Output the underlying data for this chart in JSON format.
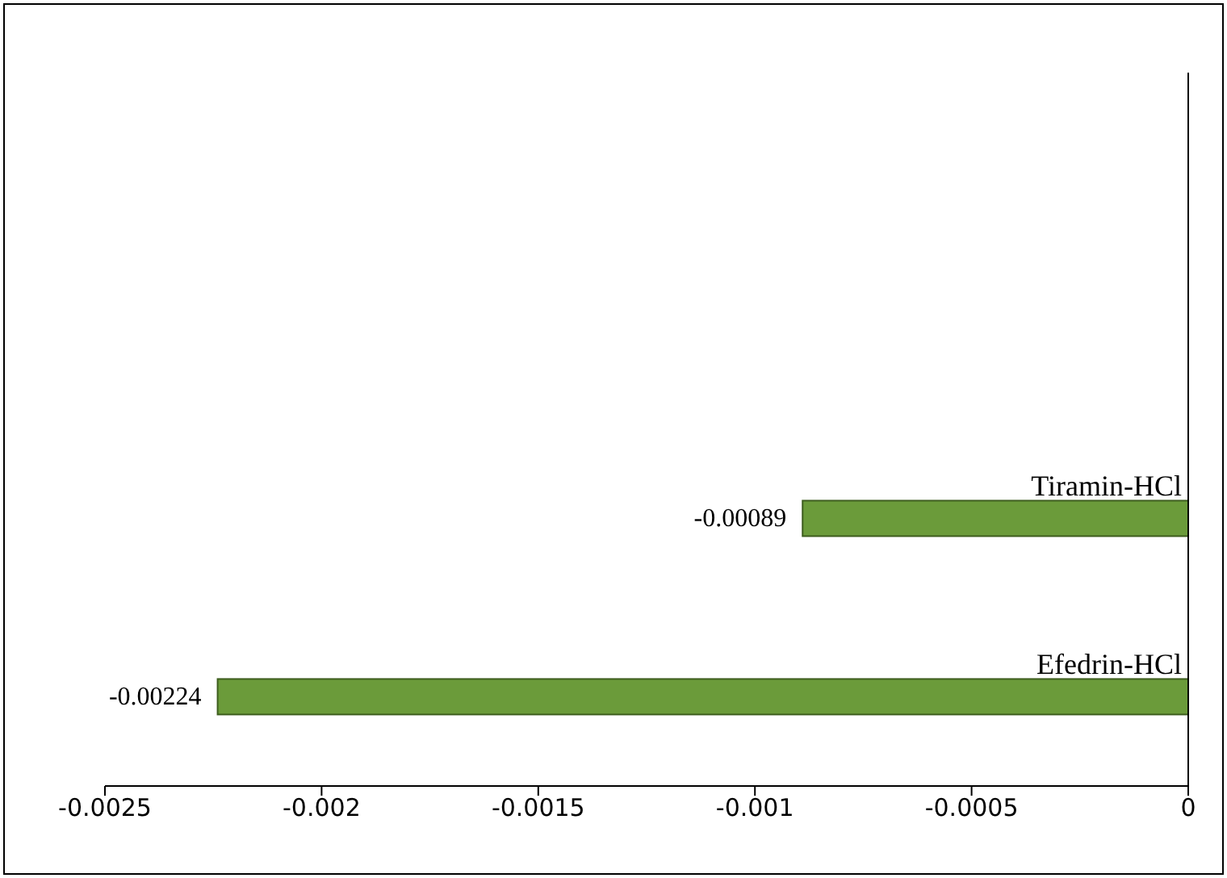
{
  "chart_data": {
    "type": "bar",
    "orientation": "horizontal",
    "categories": [
      null,
      null,
      "Tiramin-HCl",
      "Efedrin-HCl"
    ],
    "values": [
      null,
      null,
      -0.00089,
      -0.00224
    ],
    "color": "#6b9b3a",
    "xlim": [
      -0.0025,
      0
    ],
    "xticks": [
      -0.0025,
      -0.002,
      -0.0015,
      -0.001,
      -0.0005,
      0
    ],
    "data_labels": true,
    "grid": false
  }
}
